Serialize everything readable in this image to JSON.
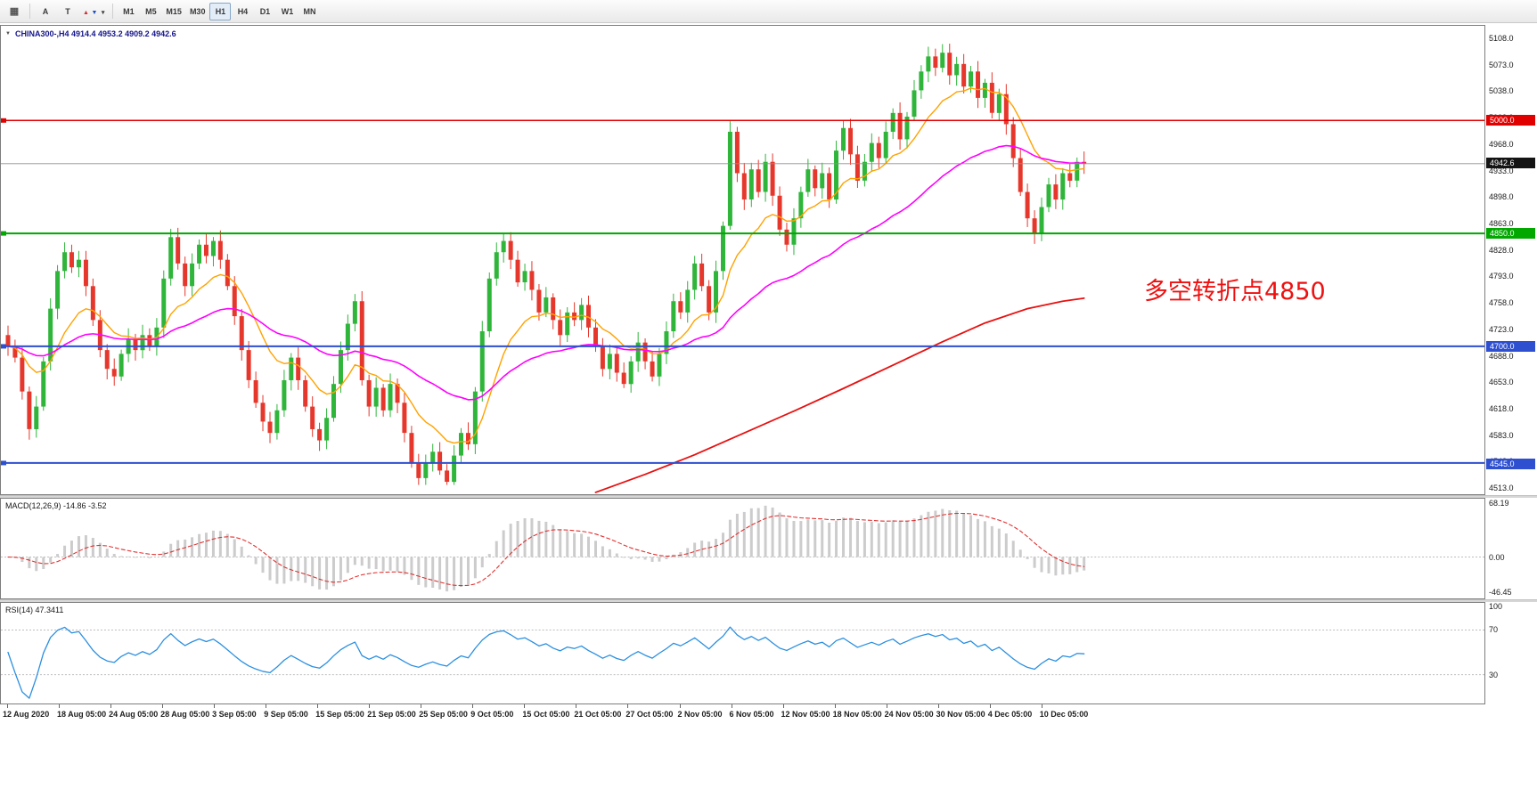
{
  "toolbar": {
    "tools": {
      "grid_glyph": "▦",
      "a_label": "A",
      "t_label": "T",
      "arrow_up_glyph": "▲",
      "arrow_down_glyph": "▼",
      "caret_glyph": "▾"
    },
    "timeframes": {
      "items": [
        "M1",
        "M5",
        "M15",
        "M30",
        "H1",
        "H4",
        "D1",
        "W1",
        "MN"
      ],
      "active": "H1"
    }
  },
  "chart": {
    "title": "CHINA300-,H4 4914.4 4953.2 4909.2 4942.6",
    "symbol": "CHINA300-",
    "period": "H4",
    "ohlc": {
      "open": "4914.4",
      "high": "4953.2",
      "low": "4909.2",
      "close": "4942.6"
    },
    "dropdown_glyph": "▼",
    "annotation": {
      "text": "多空转折点4850",
      "color": "#ee1111"
    }
  },
  "chart_data": {
    "type": "candlestick",
    "symbol": "CHINA300-",
    "timeframe": "H4",
    "y_range": [
      4513,
      5108
    ],
    "y_ticks": [
      "5108.0",
      "5073.0",
      "5038.0",
      "5003.0",
      "4968.0",
      "4933.0",
      "4898.0",
      "4863.0",
      "4828.0",
      "4793.0",
      "4758.0",
      "4723.0",
      "4688.0",
      "4653.0",
      "4618.0",
      "4583.0",
      "4548.0",
      "4513.0"
    ],
    "x_labels": [
      "12 Aug 2020",
      "18 Aug 05:00",
      "24 Aug 05:00",
      "28 Aug 05:00",
      "3 Sep 05:00",
      "9 Sep 05:00",
      "15 Sep 05:00",
      "21 Sep 05:00",
      "25 Sep 05:00",
      "9 Oct 05:00",
      "15 Oct 05:00",
      "21 Oct 05:00",
      "27 Oct 05:00",
      "2 Nov 05:00",
      "6 Nov 05:00",
      "12 Nov 05:00",
      "18 Nov 05:00",
      "24 Nov 05:00",
      "30 Nov 05:00",
      "4 Dec 05:00",
      "10 Dec 05:00"
    ],
    "closes": [
      4700,
      4685,
      4640,
      4590,
      4620,
      4680,
      4750,
      4800,
      4825,
      4805,
      4815,
      4780,
      4735,
      4695,
      4670,
      4660,
      4690,
      4710,
      4695,
      4715,
      4700,
      4725,
      4790,
      4845,
      4810,
      4780,
      4810,
      4835,
      4820,
      4840,
      4815,
      4780,
      4740,
      4695,
      4655,
      4625,
      4600,
      4585,
      4615,
      4655,
      4685,
      4655,
      4620,
      4590,
      4575,
      4605,
      4650,
      4695,
      4730,
      4760,
      4655,
      4620,
      4645,
      4615,
      4650,
      4625,
      4585,
      4545,
      4525,
      4545,
      4560,
      4535,
      4520,
      4555,
      4585,
      4570,
      4640,
      4720,
      4790,
      4825,
      4840,
      4815,
      4785,
      4800,
      4775,
      4745,
      4765,
      4735,
      4715,
      4745,
      4735,
      4755,
      4725,
      4700,
      4670,
      4690,
      4665,
      4650,
      4680,
      4705,
      4680,
      4660,
      4690,
      4720,
      4760,
      4745,
      4775,
      4810,
      4780,
      4745,
      4800,
      4860,
      4985,
      4930,
      4895,
      4935,
      4905,
      4945,
      4900,
      4855,
      4835,
      4870,
      4905,
      4935,
      4910,
      4930,
      4895,
      4960,
      4990,
      4955,
      4920,
      4945,
      4970,
      4950,
      4985,
      5010,
      4975,
      5005,
      5040,
      5065,
      5085,
      5070,
      5090,
      5060,
      5075,
      5045,
      5065,
      5030,
      5050,
      5010,
      5035,
      4995,
      4950,
      4905,
      4870,
      4850,
      4885,
      4915,
      4895,
      4930,
      4920,
      4945,
      4942.6
    ],
    "last_close": 4942.6,
    "bull_color": "#2eb53a",
    "bear_color": "#e6372c",
    "ma": {
      "fast_color": "#ffa200",
      "slow_color": "#ff00ff",
      "long_color": "#e81010",
      "long_points": [
        [
          83,
          4506
        ],
        [
          90,
          4530
        ],
        [
          97,
          4556
        ],
        [
          104,
          4585
        ],
        [
          111,
          4614
        ],
        [
          118,
          4644
        ],
        [
          125,
          4675
        ],
        [
          132,
          4706
        ],
        [
          138,
          4731
        ],
        [
          144,
          4750
        ],
        [
          149,
          4760
        ],
        [
          152,
          4764
        ]
      ]
    },
    "h_lines": [
      {
        "price": 5000,
        "badge": "5000.0",
        "color": "#e00000",
        "width": 1.5
      },
      {
        "price": 4850,
        "badge": "4850.0",
        "color": "#00a800",
        "width": 2
      },
      {
        "price": 4700,
        "badge": "4700.0",
        "color": "#2d4fd0",
        "width": 2
      },
      {
        "price": 4545,
        "badge": "4545.0",
        "color": "#2d4fd0",
        "width": 2
      }
    ],
    "price_line": {
      "price": 4942.6,
      "badge": "4942.6",
      "color": "#909090"
    },
    "indicators": [
      {
        "name": "MACD",
        "label": "MACD(12,26,9) -14.86 -3.52",
        "values": {
          "macd": "-14.86",
          "signal": "-3.52"
        },
        "ticks": [
          "68.19",
          "0.00",
          "-46.45"
        ]
      },
      {
        "name": "RSI",
        "label": "RSI(14) 47.3411",
        "value": "47.3411",
        "ticks": [
          "100",
          "70",
          "30"
        ],
        "levels": [
          70,
          30
        ]
      }
    ]
  }
}
